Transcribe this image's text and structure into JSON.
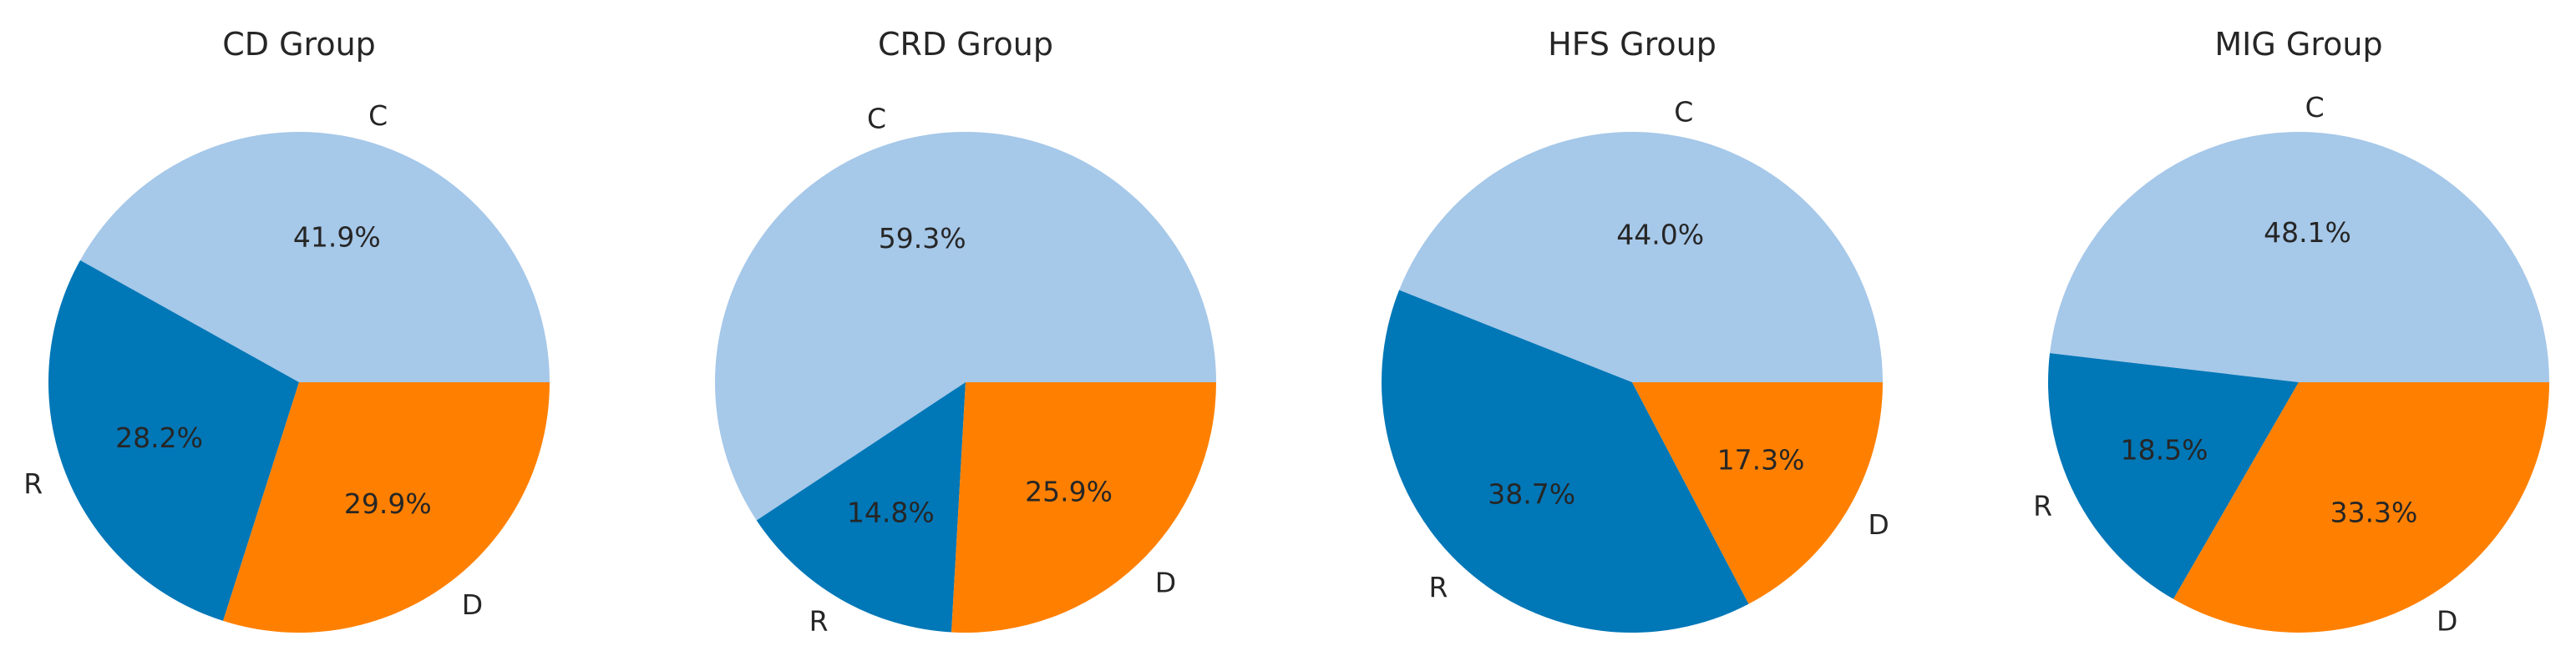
{
  "colors": {
    "C": "#a6c8e9",
    "R": "#0077b7",
    "D": "#ff8000"
  },
  "chart_data": [
    {
      "type": "pie",
      "title": "CD Group",
      "slices": [
        {
          "label": "C",
          "value": 41.9,
          "pct_label": "41.9%"
        },
        {
          "label": "R",
          "value": 28.2,
          "pct_label": "28.2%"
        },
        {
          "label": "D",
          "value": 29.9,
          "pct_label": "29.9%"
        }
      ]
    },
    {
      "type": "pie",
      "title": "CRD Group",
      "slices": [
        {
          "label": "C",
          "value": 59.3,
          "pct_label": "59.3%"
        },
        {
          "label": "R",
          "value": 14.8,
          "pct_label": "14.8%"
        },
        {
          "label": "D",
          "value": 25.9,
          "pct_label": "25.9%"
        }
      ]
    },
    {
      "type": "pie",
      "title": "HFS Group",
      "slices": [
        {
          "label": "C",
          "value": 44.0,
          "pct_label": "44.0%"
        },
        {
          "label": "R",
          "value": 38.7,
          "pct_label": "38.7%"
        },
        {
          "label": "D",
          "value": 17.3,
          "pct_label": "17.3%"
        }
      ]
    },
    {
      "type": "pie",
      "title": "MIG Group",
      "slices": [
        {
          "label": "C",
          "value": 48.1,
          "pct_label": "48.1%"
        },
        {
          "label": "R",
          "value": 18.5,
          "pct_label": "18.5%"
        },
        {
          "label": "D",
          "value": 33.3,
          "pct_label": "33.3%"
        }
      ]
    }
  ]
}
